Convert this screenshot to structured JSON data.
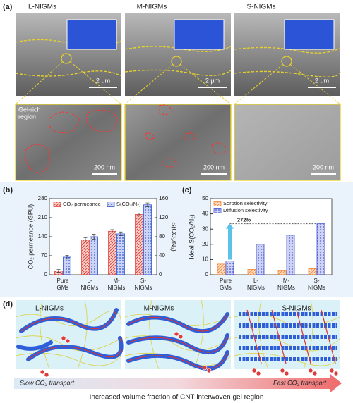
{
  "panel_labels": [
    "(a)",
    "(b)",
    "(c)",
    "(d)"
  ],
  "panel_a": {
    "titles": [
      "L-NIGMs",
      "M-NIGMs",
      "S-NIGMs"
    ],
    "scale_bars_top": [
      "2 μm",
      "2 μm",
      "2 μm"
    ],
    "scale_bars_bottom": [
      "200 nm",
      "200 nm",
      "200 nm"
    ],
    "region_label": [
      "Gel-rich",
      "region"
    ]
  },
  "chart_data": [
    {
      "type": "bar",
      "categories": [
        [
          "Pure",
          "GMs"
        ],
        [
          "L-",
          "NIGMs"
        ],
        [
          "M-",
          "NIGMs"
        ],
        [
          "S-",
          "NIGMs"
        ]
      ],
      "ylabel": "CO₂ permeance (GPU)",
      "y2label": "S(CO₂/N₂)",
      "ylim": [
        0,
        280
      ],
      "yticks": [
        0,
        70,
        140,
        210,
        280
      ],
      "y2lim": [
        0,
        160
      ],
      "y2ticks": [
        0,
        40,
        80,
        120,
        160
      ],
      "series": [
        {
          "name": "CO₂ permeance",
          "color": "#e0463c",
          "values": [
            14,
            128,
            160,
            222
          ],
          "errors": [
            5,
            8,
            6,
            5
          ]
        },
        {
          "name": "S(CO₂/N₂)",
          "color": "#2f55d4",
          "axis": "y2",
          "values": [
            37,
            80,
            86,
            147
          ],
          "errors": [
            4,
            5,
            4,
            4
          ]
        }
      ],
      "legend": "top"
    },
    {
      "type": "bar",
      "categories": [
        [
          "Pure",
          "GMs"
        ],
        [
          "L-",
          "NIGMs"
        ],
        [
          "M-",
          "NIGMs"
        ],
        [
          "S-",
          "NIGMs"
        ]
      ],
      "ylabel": "Ideal S(CO₂/N₂)",
      "ylim": [
        0,
        50
      ],
      "yticks": [
        0,
        10,
        20,
        30,
        40,
        50
      ],
      "series": [
        {
          "name": "Sorption selectivity",
          "color": "#f08a3c",
          "values": [
            7,
            3.5,
            3,
            4
          ]
        },
        {
          "name": "Diffusion selectivity",
          "color": "#3f4fd0",
          "values": [
            9,
            20,
            26,
            33.5
          ]
        }
      ],
      "annotation": "272%",
      "legend": "upper left"
    }
  ],
  "panel_d": {
    "titles": [
      "L-NIGMs",
      "M-NIGMs",
      "S-NIGMs"
    ],
    "slow": "Slow CO₂ transport",
    "fast": "Fast CO₂ transport",
    "caption": "Increased volume fraction of CNT-interwoven gel region"
  }
}
